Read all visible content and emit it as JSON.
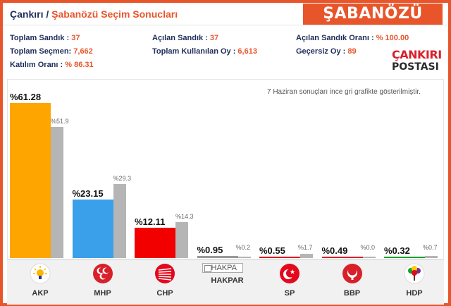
{
  "header": {
    "city": "Çankırı",
    "separator": " / ",
    "place": "Şabanözü Seçim Sonucları",
    "badge": "ŞABANÖZÜ"
  },
  "stats": [
    {
      "label": "Toplam Sandık : ",
      "value": "37"
    },
    {
      "label": "Açılan Sandık : ",
      "value": "37"
    },
    {
      "label": "Açılan Sandık Oranı : ",
      "value": "% 100.00"
    },
    {
      "label": "Toplam Seçmen: ",
      "value": "7,662"
    },
    {
      "label": "Toplam Kullanılan Oy : ",
      "value": "6,613"
    },
    {
      "label": "Geçersiz Oy : ",
      "value": "89"
    },
    {
      "label": "Katılım Oranı : ",
      "value": "% 86.31"
    }
  ],
  "logo": {
    "line1": "ÇANKIRI",
    "line2": "POSTASI"
  },
  "chart_data": {
    "type": "bar",
    "note": "7 Haziran sonuçları ince gri grafikte gösterilmiştir.",
    "categories": [
      "AKP",
      "MHP",
      "CHP",
      "HAKPAR",
      "SP",
      "BBP",
      "HDP"
    ],
    "series": [
      {
        "values": [
          61.28,
          23.15,
          12.11,
          0.95,
          0.55,
          0.49,
          0.32
        ]
      },
      {
        "values": [
          51.9,
          29.3,
          14.3,
          0.2,
          1.7,
          0.0,
          0.7
        ]
      }
    ],
    "labels_new": [
      "%61.28",
      "%23.15",
      "%12.11",
      "%0.95",
      "%0.55",
      "%0.49",
      "%0.32"
    ],
    "labels_old": [
      "%51.9",
      "%29.3",
      "%14.3",
      "%0.2",
      "%1.7",
      "%0.0",
      "%0.7"
    ],
    "colors": [
      "#ffa500",
      "#3aa0ea",
      "#f20000",
      "#999999",
      "#e3081c",
      "#d8202a",
      "#12a32a"
    ],
    "ylim": [
      0,
      61.28
    ]
  },
  "parties": [
    {
      "name": "AKP",
      "icon": "akp-bulb-icon"
    },
    {
      "name": "MHP",
      "icon": "mhp-crescents-icon"
    },
    {
      "name": "CHP",
      "icon": "chp-arrows-icon"
    },
    {
      "name": "HAKPAR",
      "icon": "hakpar-logo-icon",
      "broken_alt": "HAKPA"
    },
    {
      "name": "SP",
      "icon": "sp-crescent-icon"
    },
    {
      "name": "BBP",
      "icon": "bbp-crescent-icon"
    },
    {
      "name": "HDP",
      "icon": "hdp-tree-icon"
    }
  ]
}
